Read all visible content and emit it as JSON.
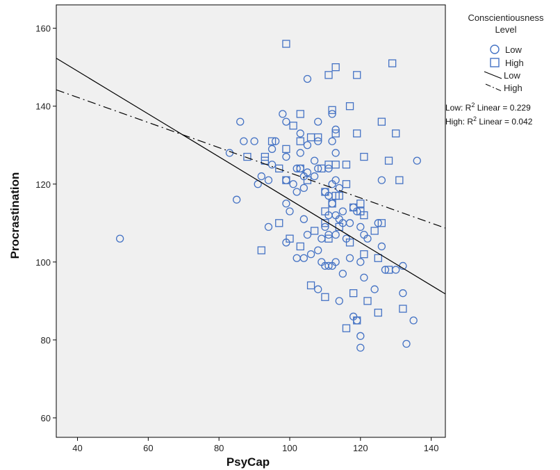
{
  "chart_data": {
    "type": "scatter",
    "xlabel": "PsyCap",
    "ylabel": "Procrastination",
    "xlim": [
      34,
      144
    ],
    "ylim": [
      55,
      166
    ],
    "xticks": [
      40,
      60,
      80,
      100,
      120,
      140
    ],
    "yticks": [
      60,
      80,
      100,
      120,
      140,
      160
    ],
    "grid": false,
    "legend_position": "right",
    "legend_title": "Conscientiousness Level",
    "legend_title_lines": [
      "Conscientiousness",
      "Level"
    ],
    "legend": {
      "low_marker_label": "Low",
      "high_marker_label": "High",
      "low_line_label": "Low",
      "high_line_label": "High"
    },
    "r_squared": {
      "low_prefix": "Low: R",
      "high_prefix": "High: R",
      "sup": "2",
      "low_suffix": " Linear = 0.229",
      "high_suffix": " Linear = 0.042"
    },
    "colors": {
      "plot_background": "#f0f0f0",
      "marker": "#4472c4",
      "fit_line": "#000000",
      "axes": "#000000"
    },
    "series": [
      {
        "name": "Low",
        "marker": "circle",
        "points": [
          [
            52,
            106
          ],
          [
            85,
            116
          ],
          [
            83,
            128
          ],
          [
            86,
            136
          ],
          [
            87,
            131
          ],
          [
            90,
            131
          ],
          [
            91,
            120
          ],
          [
            92,
            122
          ],
          [
            94,
            121
          ],
          [
            94,
            109
          ],
          [
            95,
            125
          ],
          [
            95,
            129
          ],
          [
            96,
            131
          ],
          [
            98,
            138
          ],
          [
            99,
            136
          ],
          [
            99,
            127
          ],
          [
            99,
            121
          ],
          [
            99,
            115
          ],
          [
            100,
            113
          ],
          [
            99,
            105
          ],
          [
            101,
            120
          ],
          [
            102,
            124
          ],
          [
            102,
            118
          ],
          [
            102,
            101
          ],
          [
            103,
            133
          ],
          [
            103,
            128
          ],
          [
            103,
            124
          ],
          [
            104,
            122
          ],
          [
            104,
            119
          ],
          [
            104,
            111
          ],
          [
            104,
            101
          ],
          [
            105,
            147
          ],
          [
            105,
            130
          ],
          [
            105,
            123
          ],
          [
            105,
            107
          ],
          [
            106,
            102
          ],
          [
            107,
            126
          ],
          [
            107,
            122
          ],
          [
            108,
            136
          ],
          [
            108,
            131
          ],
          [
            108,
            124
          ],
          [
            108,
            103
          ],
          [
            108,
            93
          ],
          [
            109,
            106
          ],
          [
            109,
            100
          ],
          [
            110,
            118
          ],
          [
            110,
            109
          ],
          [
            110,
            99
          ],
          [
            111,
            124
          ],
          [
            111,
            117
          ],
          [
            111,
            112
          ],
          [
            111,
            107
          ],
          [
            111,
            99
          ],
          [
            112,
            138
          ],
          [
            112,
            131
          ],
          [
            112,
            120
          ],
          [
            112,
            115
          ],
          [
            112,
            99
          ],
          [
            113,
            134
          ],
          [
            113,
            128
          ],
          [
            113,
            121
          ],
          [
            113,
            112
          ],
          [
            113,
            107
          ],
          [
            113,
            100
          ],
          [
            114,
            119
          ],
          [
            114,
            111
          ],
          [
            114,
            90
          ],
          [
            115,
            113
          ],
          [
            115,
            110
          ],
          [
            115,
            97
          ],
          [
            116,
            106
          ],
          [
            117,
            110
          ],
          [
            117,
            101
          ],
          [
            118,
            114
          ],
          [
            118,
            86
          ],
          [
            119,
            113
          ],
          [
            119,
            85
          ],
          [
            120,
            109
          ],
          [
            120,
            100
          ],
          [
            120,
            81
          ],
          [
            120,
            78
          ],
          [
            121,
            107
          ],
          [
            121,
            96
          ],
          [
            122,
            106
          ],
          [
            124,
            93
          ],
          [
            125,
            110
          ],
          [
            126,
            121
          ],
          [
            126,
            104
          ],
          [
            127,
            98
          ],
          [
            130,
            98
          ],
          [
            132,
            99
          ],
          [
            132,
            92
          ],
          [
            133,
            79
          ],
          [
            135,
            85
          ],
          [
            136,
            126
          ]
        ]
      },
      {
        "name": "High",
        "marker": "square",
        "points": [
          [
            99,
            156
          ],
          [
            111,
            148
          ],
          [
            113,
            150
          ],
          [
            119,
            148
          ],
          [
            129,
            151
          ],
          [
            117,
            140
          ],
          [
            112,
            139
          ],
          [
            126,
            136
          ],
          [
            113,
            133
          ],
          [
            119,
            133
          ],
          [
            130,
            133
          ],
          [
            106,
            132
          ],
          [
            103,
            131
          ],
          [
            108,
            132
          ],
          [
            95,
            131
          ],
          [
            101,
            135
          ],
          [
            103,
            138
          ],
          [
            99,
            129
          ],
          [
            88,
            127
          ],
          [
            93,
            126
          ],
          [
            93,
            127
          ],
          [
            97,
            124
          ],
          [
            99,
            121
          ],
          [
            103,
            124
          ],
          [
            105,
            121
          ],
          [
            109,
            124
          ],
          [
            111,
            125
          ],
          [
            113,
            125
          ],
          [
            116,
            125
          ],
          [
            121,
            127
          ],
          [
            128,
            126
          ],
          [
            131,
            121
          ],
          [
            110,
            118
          ],
          [
            113,
            117
          ],
          [
            116,
            120
          ],
          [
            110,
            113
          ],
          [
            112,
            115
          ],
          [
            114,
            117
          ],
          [
            118,
            114
          ],
          [
            120,
            113
          ],
          [
            121,
            112
          ],
          [
            124,
            108
          ],
          [
            126,
            110
          ],
          [
            97,
            110
          ],
          [
            100,
            106
          ],
          [
            103,
            104
          ],
          [
            107,
            108
          ],
          [
            110,
            110
          ],
          [
            111,
            106
          ],
          [
            114,
            109
          ],
          [
            117,
            105
          ],
          [
            121,
            102
          ],
          [
            125,
            101
          ],
          [
            92,
            103
          ],
          [
            106,
            94
          ],
          [
            110,
            91
          ],
          [
            116,
            83
          ],
          [
            118,
            92
          ],
          [
            119,
            85
          ],
          [
            122,
            90
          ],
          [
            125,
            87
          ],
          [
            128,
            98
          ],
          [
            132,
            88
          ],
          [
            120,
            115
          ]
        ]
      }
    ],
    "fit_lines": [
      {
        "name": "Low",
        "style": "solid",
        "x": [
          34,
          144
        ],
        "y": [
          152.3,
          91.8
        ]
      },
      {
        "name": "High",
        "style": "dash-dot",
        "x": [
          34,
          144
        ],
        "y": [
          144.2,
          108.7
        ]
      }
    ]
  }
}
